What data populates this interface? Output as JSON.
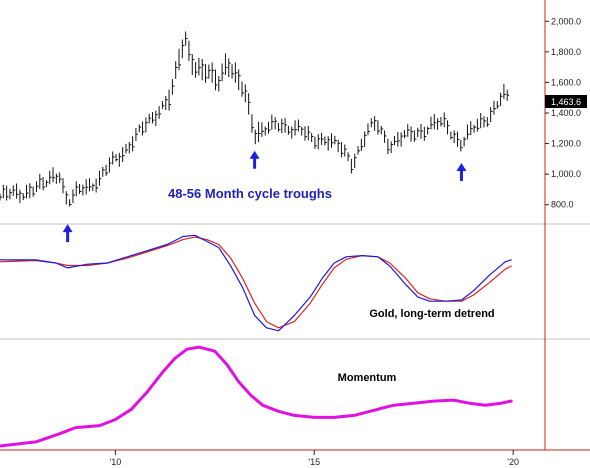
{
  "chart_data": [
    {
      "type": "bar",
      "panel": "price",
      "bar_style": "high-low",
      "annotation": "48-56 Month cycle troughs",
      "last_value_label": "1,463.6",
      "ylim": [
        700,
        2100
      ],
      "yticks": [
        800,
        1000,
        1200,
        1400,
        1600,
        1800,
        2000
      ],
      "ytick_labels": [
        "800.0",
        "1,000.0",
        "1,200.0",
        "1,400.0",
        "1,600.0",
        "1,800.0",
        "2,000.0"
      ],
      "xlim": [
        2007.1,
        2020.8
      ],
      "xticks": [
        2010,
        2015,
        2020
      ],
      "xtick_labels": [
        "'10",
        "'15",
        "'20"
      ],
      "trough_arrows_x": [
        2008.8,
        2013.5,
        2018.7
      ],
      "anchors": [
        [
          2007.1,
          850
        ],
        [
          2007.6,
          880
        ],
        [
          2008.2,
          920
        ],
        [
          2008.4,
          990
        ],
        [
          2008.6,
          1010
        ],
        [
          2008.8,
          800
        ],
        [
          2009.2,
          920
        ],
        [
          2009.6,
          960
        ],
        [
          2010.0,
          1100
        ],
        [
          2010.5,
          1230
        ],
        [
          2011.0,
          1400
        ],
        [
          2011.4,
          1500
        ],
        [
          2011.6,
          1750
        ],
        [
          2011.75,
          1900
        ],
        [
          2012.0,
          1700
        ],
        [
          2012.3,
          1650
        ],
        [
          2012.6,
          1620
        ],
        [
          2012.8,
          1750
        ],
        [
          2013.0,
          1640
        ],
        [
          2013.3,
          1500
        ],
        [
          2013.5,
          1280
        ],
        [
          2013.9,
          1300
        ],
        [
          2014.2,
          1320
        ],
        [
          2014.6,
          1300
        ],
        [
          2014.9,
          1220
        ],
        [
          2015.3,
          1240
        ],
        [
          2015.7,
          1150
        ],
        [
          2015.95,
          1080
        ],
        [
          2016.3,
          1260
        ],
        [
          2016.55,
          1330
        ],
        [
          2016.9,
          1200
        ],
        [
          2017.2,
          1230
        ],
        [
          2017.6,
          1280
        ],
        [
          2018.0,
          1320
        ],
        [
          2018.3,
          1330
        ],
        [
          2018.7,
          1200
        ],
        [
          2019.0,
          1290
        ],
        [
          2019.5,
          1420
        ],
        [
          2019.75,
          1510
        ],
        [
          2019.92,
          1470
        ]
      ]
    },
    {
      "type": "line",
      "panel": "detrend",
      "annotation": "Gold, long-term detrend",
      "series": [
        {
          "color": "#1a1ad9",
          "points": [
            [
              2007.1,
              0.55
            ],
            [
              2008.0,
              0.55
            ],
            [
              2008.5,
              0.5
            ],
            [
              2008.8,
              0.42
            ],
            [
              2009.3,
              0.48
            ],
            [
              2009.8,
              0.5
            ],
            [
              2010.3,
              0.6
            ],
            [
              2010.8,
              0.7
            ],
            [
              2011.3,
              0.8
            ],
            [
              2011.7,
              0.93
            ],
            [
              2012.0,
              0.95
            ],
            [
              2012.3,
              0.85
            ],
            [
              2012.6,
              0.75
            ],
            [
              2012.9,
              0.45
            ],
            [
              2013.2,
              0.1
            ],
            [
              2013.5,
              -0.35
            ],
            [
              2013.8,
              -0.55
            ],
            [
              2014.1,
              -0.6
            ],
            [
              2014.5,
              -0.35
            ],
            [
              2014.9,
              -0.05
            ],
            [
              2015.2,
              0.25
            ],
            [
              2015.5,
              0.5
            ],
            [
              2015.8,
              0.6
            ],
            [
              2016.2,
              0.62
            ],
            [
              2016.6,
              0.6
            ],
            [
              2016.9,
              0.45
            ],
            [
              2017.3,
              0.15
            ],
            [
              2017.6,
              -0.05
            ],
            [
              2017.9,
              -0.12
            ],
            [
              2018.3,
              -0.12
            ],
            [
              2018.7,
              -0.1
            ],
            [
              2019.0,
              0.05
            ],
            [
              2019.4,
              0.3
            ],
            [
              2019.8,
              0.52
            ],
            [
              2019.95,
              0.55
            ]
          ]
        },
        {
          "color": "#e02020",
          "points": [
            [
              2007.1,
              0.52
            ],
            [
              2008.0,
              0.54
            ],
            [
              2008.5,
              0.5
            ],
            [
              2008.8,
              0.46
            ],
            [
              2009.3,
              0.46
            ],
            [
              2009.8,
              0.5
            ],
            [
              2010.3,
              0.58
            ],
            [
              2010.8,
              0.68
            ],
            [
              2011.3,
              0.78
            ],
            [
              2011.7,
              0.88
            ],
            [
              2012.0,
              0.92
            ],
            [
              2012.3,
              0.88
            ],
            [
              2012.6,
              0.8
            ],
            [
              2012.9,
              0.58
            ],
            [
              2013.2,
              0.25
            ],
            [
              2013.5,
              -0.15
            ],
            [
              2013.8,
              -0.45
            ],
            [
              2014.1,
              -0.55
            ],
            [
              2014.5,
              -0.45
            ],
            [
              2014.9,
              -0.15
            ],
            [
              2015.2,
              0.15
            ],
            [
              2015.5,
              0.42
            ],
            [
              2015.8,
              0.56
            ],
            [
              2016.2,
              0.62
            ],
            [
              2016.6,
              0.6
            ],
            [
              2016.9,
              0.5
            ],
            [
              2017.3,
              0.25
            ],
            [
              2017.6,
              0.02
            ],
            [
              2017.9,
              -0.08
            ],
            [
              2018.3,
              -0.12
            ],
            [
              2018.7,
              -0.12
            ],
            [
              2019.0,
              -0.02
            ],
            [
              2019.4,
              0.18
            ],
            [
              2019.8,
              0.4
            ],
            [
              2019.95,
              0.45
            ]
          ]
        }
      ],
      "ylim": [
        -0.7,
        1.1
      ]
    },
    {
      "type": "line",
      "panel": "momentum",
      "annotation": "Momentum",
      "series": [
        {
          "color": "#e011e0",
          "points": [
            [
              2007.1,
              0.02
            ],
            [
              2008.0,
              0.06
            ],
            [
              2008.6,
              0.14
            ],
            [
              2009.0,
              0.2
            ],
            [
              2009.6,
              0.22
            ],
            [
              2010.0,
              0.28
            ],
            [
              2010.4,
              0.38
            ],
            [
              2010.8,
              0.55
            ],
            [
              2011.2,
              0.75
            ],
            [
              2011.5,
              0.88
            ],
            [
              2011.8,
              0.97
            ],
            [
              2012.1,
              0.99
            ],
            [
              2012.5,
              0.95
            ],
            [
              2012.8,
              0.82
            ],
            [
              2013.1,
              0.65
            ],
            [
              2013.4,
              0.52
            ],
            [
              2013.7,
              0.42
            ],
            [
              2014.1,
              0.36
            ],
            [
              2014.5,
              0.32
            ],
            [
              2015.0,
              0.3
            ],
            [
              2015.5,
              0.3
            ],
            [
              2016.0,
              0.32
            ],
            [
              2016.5,
              0.37
            ],
            [
              2017.0,
              0.42
            ],
            [
              2017.5,
              0.44
            ],
            [
              2018.0,
              0.46
            ],
            [
              2018.5,
              0.47
            ],
            [
              2018.9,
              0.44
            ],
            [
              2019.3,
              0.42
            ],
            [
              2019.7,
              0.44
            ],
            [
              2019.95,
              0.46
            ]
          ]
        }
      ],
      "ylim": [
        0,
        1.05
      ]
    }
  ]
}
